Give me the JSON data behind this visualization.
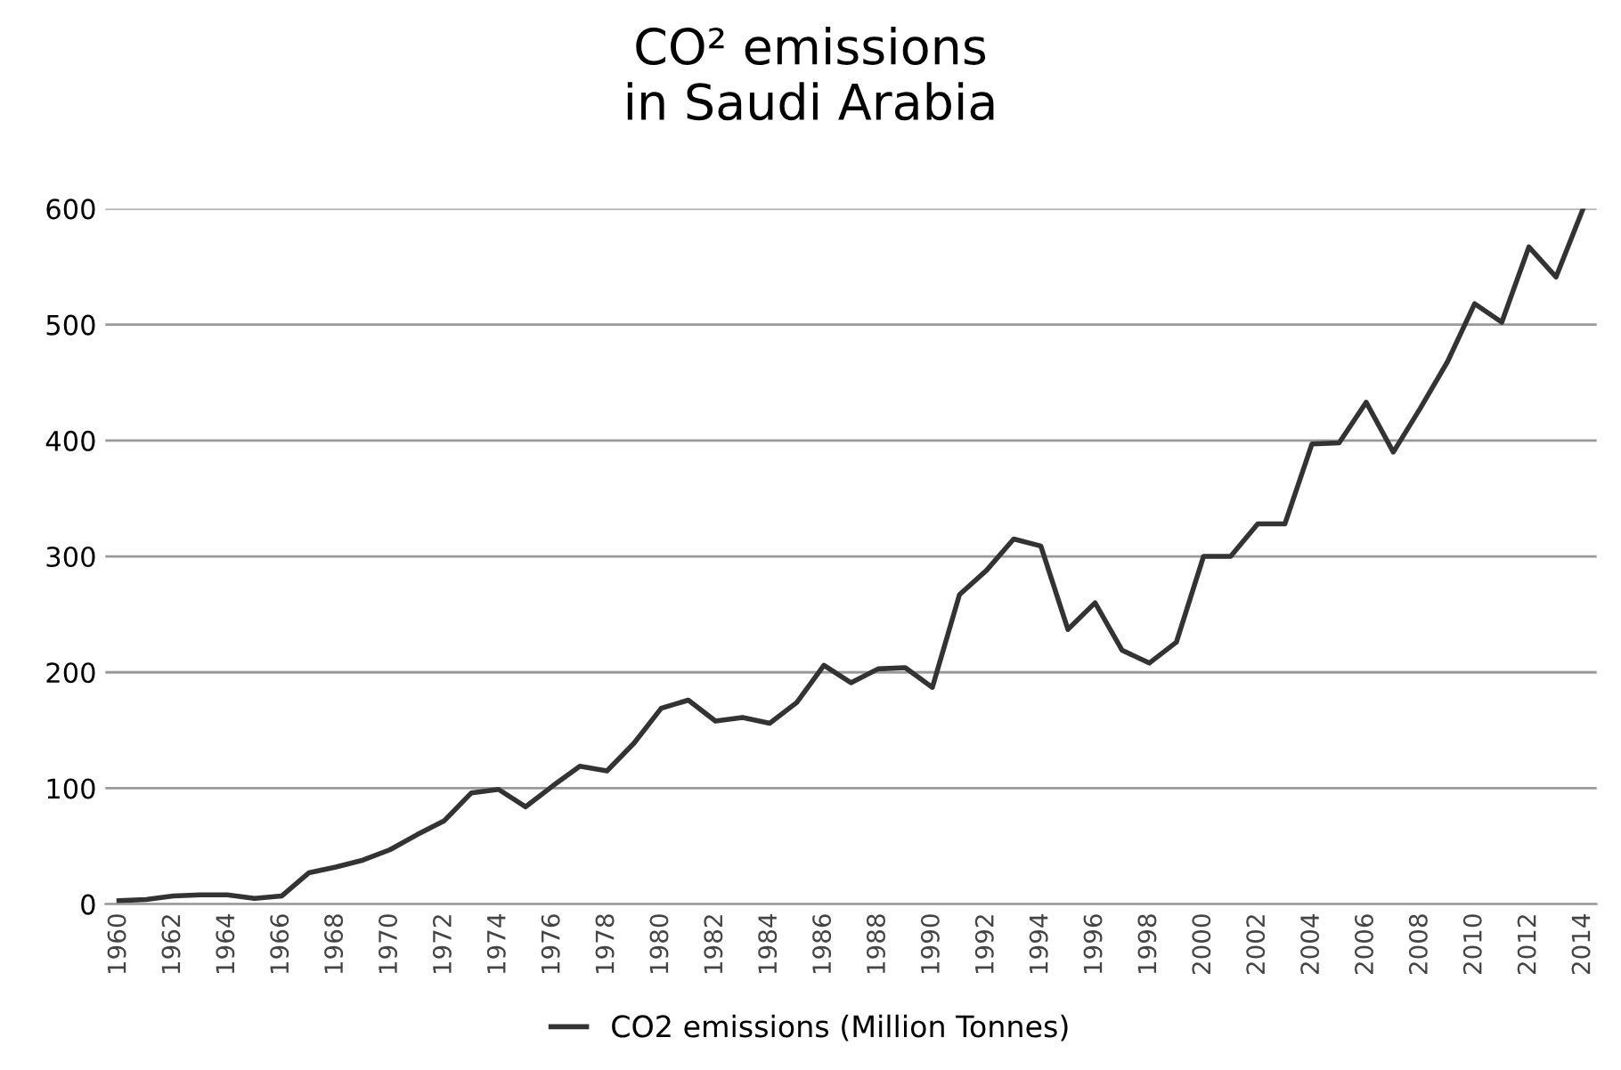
{
  "chart_data": {
    "type": "line",
    "title": "CO² emissions\nin Saudi Arabia",
    "categories": [
      "1960",
      null,
      "1962",
      null,
      "1964",
      null,
      "1966",
      null,
      "1968",
      null,
      "1970",
      null,
      "1972",
      null,
      "1974",
      null,
      "1976",
      null,
      "1978",
      null,
      "1980",
      null,
      "1982",
      null,
      "1984",
      null,
      "1986",
      null,
      "1988",
      null,
      "1990",
      null,
      "1992",
      null,
      "1994",
      null,
      "1996",
      null,
      "1998",
      null,
      "2000",
      null,
      "2002",
      null,
      "2004",
      null,
      "2006",
      null,
      "2008",
      null,
      "2010",
      null,
      "2012",
      null,
      "2014"
    ],
    "series": [
      {
        "name": "CO2 emissions (Million Tonnes)",
        "color": "#333333",
        "values": [
          3,
          4,
          7,
          8,
          8,
          5,
          7,
          27,
          32,
          38,
          47,
          60,
          72,
          96,
          99,
          84,
          102,
          119,
          115,
          139,
          169,
          176,
          158,
          161,
          156,
          174,
          206,
          191,
          203,
          204,
          187,
          267,
          288,
          315,
          309,
          237,
          260,
          219,
          208,
          226,
          300,
          300,
          328,
          328,
          397,
          398,
          433,
          390,
          428,
          468,
          518,
          502,
          567,
          541,
          600
        ]
      }
    ],
    "ylim": [
      0,
      600
    ],
    "yticks": [
      0,
      100,
      200,
      300,
      400,
      500,
      600
    ],
    "grid": "y",
    "legend": "bottom",
    "marker": "none",
    "line_style": "solid"
  }
}
